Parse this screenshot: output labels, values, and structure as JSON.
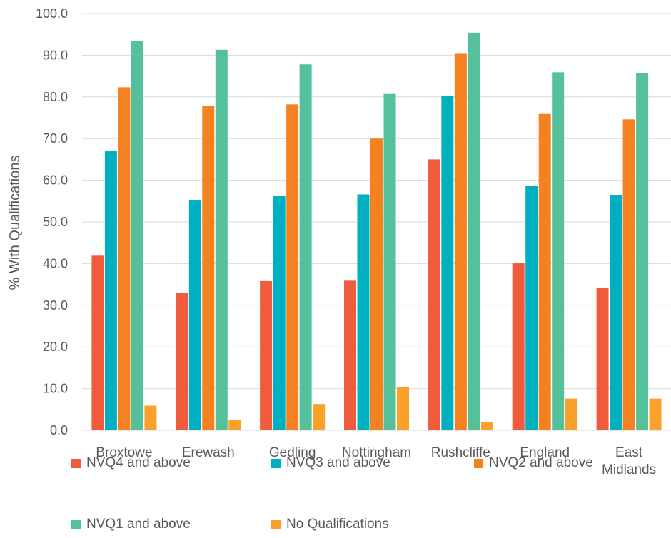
{
  "colors": {
    "NVQ4 and above": "#F05B3B",
    "NVQ3 and above": "#00B0C0",
    "NVQ2 and above": "#F58220",
    "NVQ1 and above": "#55C19A",
    "No Qualifications": "#F9A12B",
    "grid": "#D9D9D9",
    "text": "#595959"
  },
  "chart_data": {
    "type": "bar",
    "title": "",
    "xlabel": "",
    "ylabel": "% With Qualifications",
    "ylim": [
      0,
      100
    ],
    "ytick_step": 10,
    "yticks": [
      "0.0",
      "10.0",
      "20.0",
      "30.0",
      "40.0",
      "50.0",
      "60.0",
      "70.0",
      "80.0",
      "90.0",
      "100.0"
    ],
    "grid": true,
    "legend_position": "bottom",
    "categories": [
      [
        "Broxtowe"
      ],
      [
        "Erewash"
      ],
      [
        "Gedling"
      ],
      [
        "Nottingham"
      ],
      [
        "Rushcliffe"
      ],
      [
        "England"
      ],
      [
        "East",
        "Midlands"
      ]
    ],
    "series": [
      {
        "name": "NVQ4 and above",
        "values": [
          41.9,
          33.0,
          35.8,
          35.9,
          65.0,
          40.1,
          34.2
        ]
      },
      {
        "name": "NVQ3 and above",
        "values": [
          67.1,
          55.3,
          56.2,
          56.6,
          80.2,
          58.7,
          56.5
        ]
      },
      {
        "name": "NVQ2 and above",
        "values": [
          82.3,
          77.8,
          78.2,
          70.0,
          90.5,
          75.9,
          74.6
        ]
      },
      {
        "name": "NVQ1 and above",
        "values": [
          93.5,
          91.3,
          87.8,
          80.7,
          95.4,
          85.9,
          85.7
        ]
      },
      {
        "name": "No Qualifications",
        "values": [
          5.9,
          2.4,
          6.3,
          10.3,
          1.9,
          7.6,
          7.6
        ]
      }
    ]
  }
}
